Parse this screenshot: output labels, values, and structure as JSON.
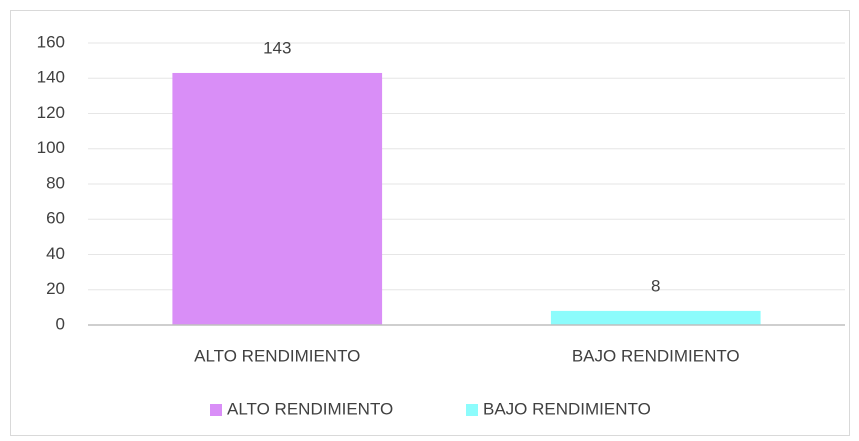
{
  "chart_data": {
    "type": "bar",
    "categories": [
      "ALTO RENDIMIENTO",
      "BAJO RENDIMIENTO"
    ],
    "series": [
      {
        "name": "ALTO RENDIMIENTO",
        "color": "#d98ef7",
        "values": [
          143,
          null
        ]
      },
      {
        "name": "BAJO RENDIMIENTO",
        "color": "#8cfcfc",
        "values": [
          null,
          8
        ]
      }
    ],
    "ylim": [
      0,
      160
    ],
    "yticks": [
      0,
      20,
      40,
      60,
      80,
      100,
      120,
      140,
      160
    ],
    "grid": true,
    "legend": "bottom",
    "data_labels": true
  }
}
